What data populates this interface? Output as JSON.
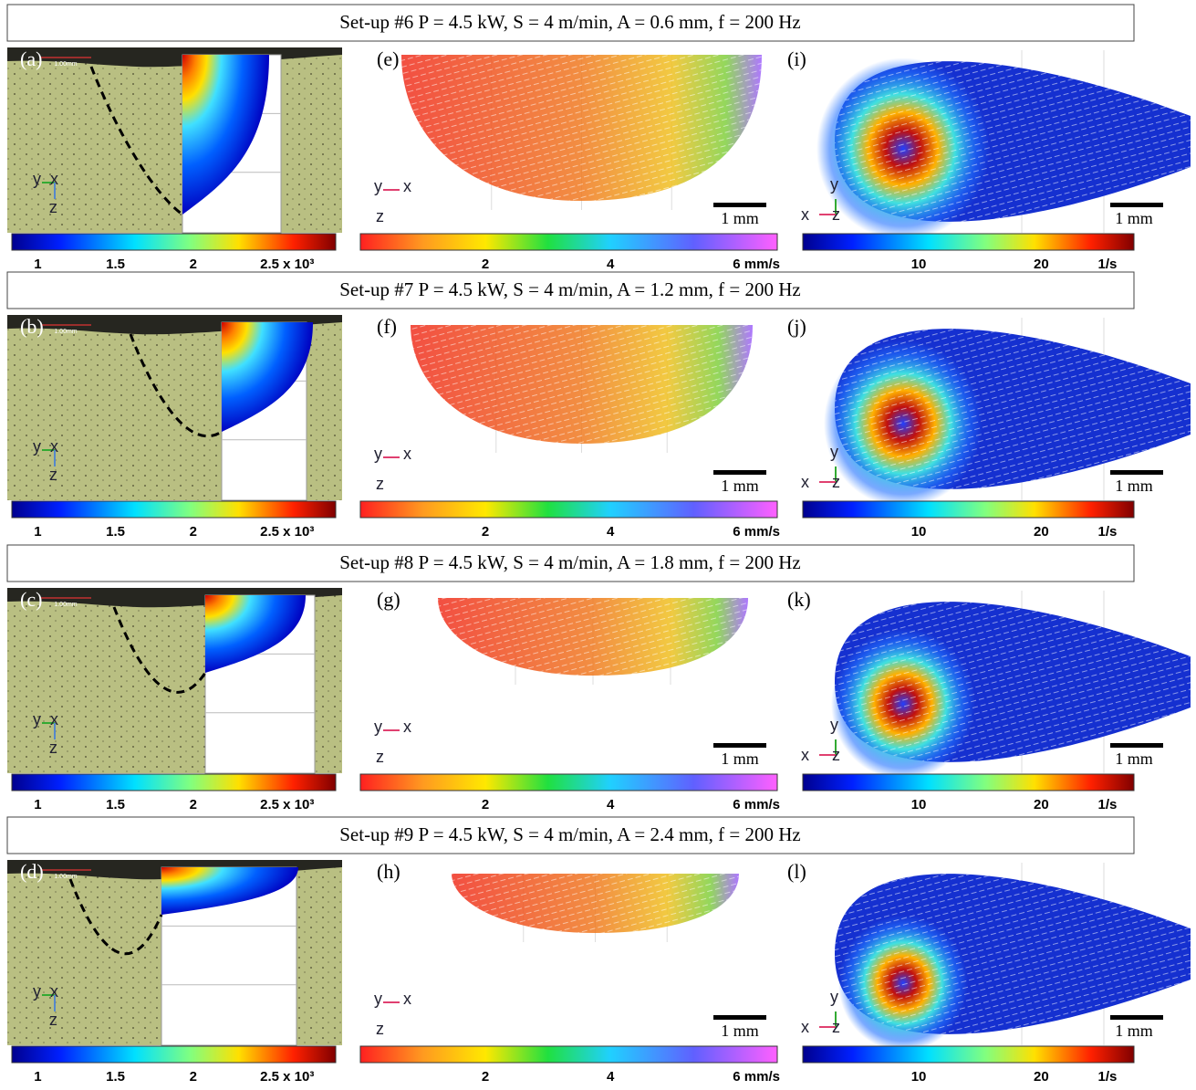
{
  "figure": {
    "rows": [
      {
        "header": "Set-up #6 P = 4.5 kW, S = 4 m/min, A = 0.6 mm, f = 200 Hz",
        "panels": [
          {
            "label": "(a)",
            "scale_label": "1.00mm",
            "axes": [
              "y",
              "x",
              "z"
            ],
            "colorbar_ticks": [
              "1",
              "1.5",
              "2",
              "2.5 x 10³"
            ]
          },
          {
            "label": "(e)",
            "scale_label": "1 mm",
            "axes": [
              "y",
              "x",
              "z"
            ],
            "colorbar_ticks": [
              "2",
              "4",
              "6 mm/s"
            ]
          },
          {
            "label": "(i)",
            "scale_label": "1 mm",
            "axes": [
              "y",
              "x",
              "z"
            ],
            "colorbar_ticks": [
              "10",
              "20",
              "1/s"
            ]
          }
        ]
      },
      {
        "header": "Set-up #7 P = 4.5 kW, S = 4 m/min, A = 1.2 mm, f = 200 Hz",
        "panels": [
          {
            "label": "(b)",
            "scale_label": "1.00mm",
            "axes": [
              "y",
              "x",
              "z"
            ],
            "colorbar_ticks": [
              "1",
              "1.5",
              "2",
              "2.5 x 10³"
            ]
          },
          {
            "label": "(f)",
            "scale_label": "1 mm",
            "axes": [
              "y",
              "x",
              "z"
            ],
            "colorbar_ticks": [
              "2",
              "4",
              "6 mm/s"
            ]
          },
          {
            "label": "(j)",
            "scale_label": "1 mm",
            "axes": [
              "y",
              "x",
              "z"
            ],
            "colorbar_ticks": [
              "10",
              "20",
              "1/s"
            ]
          }
        ]
      },
      {
        "header": "Set-up #8 P = 4.5 kW, S = 4 m/min, A = 1.8 mm, f = 200 Hz",
        "panels": [
          {
            "label": "(c)",
            "scale_label": "1.00mm",
            "axes": [
              "y",
              "x",
              "z"
            ],
            "colorbar_ticks": [
              "1",
              "1.5",
              "2",
              "2.5 x 10³"
            ]
          },
          {
            "label": "(g)",
            "scale_label": "1 mm",
            "axes": [
              "y",
              "x",
              "z"
            ],
            "colorbar_ticks": [
              "2",
              "4",
              "6 mm/s"
            ]
          },
          {
            "label": "(k)",
            "scale_label": "1 mm",
            "axes": [
              "y",
              "x",
              "z"
            ],
            "colorbar_ticks": [
              "10",
              "20",
              "1/s"
            ]
          }
        ]
      },
      {
        "header": "Set-up #9 P = 4.5 kW, S = 4 m/min, A = 2.4 mm, f = 200 Hz",
        "panels": [
          {
            "label": "(d)",
            "scale_label": "1.00mm",
            "axes": [
              "y",
              "x",
              "z"
            ],
            "colorbar_ticks": [
              "1",
              "1.5",
              "2",
              "2.5 x 10³"
            ]
          },
          {
            "label": "(h)",
            "scale_label": "1 mm",
            "axes": [
              "y",
              "x",
              "z"
            ],
            "colorbar_ticks": [
              "2",
              "4",
              "6 mm/s"
            ]
          },
          {
            "label": "(l)",
            "scale_label": "1 mm",
            "axes": [
              "y",
              "x",
              "z"
            ],
            "colorbar_ticks": [
              "10",
              "20",
              "1/s"
            ]
          }
        ]
      }
    ]
  }
}
